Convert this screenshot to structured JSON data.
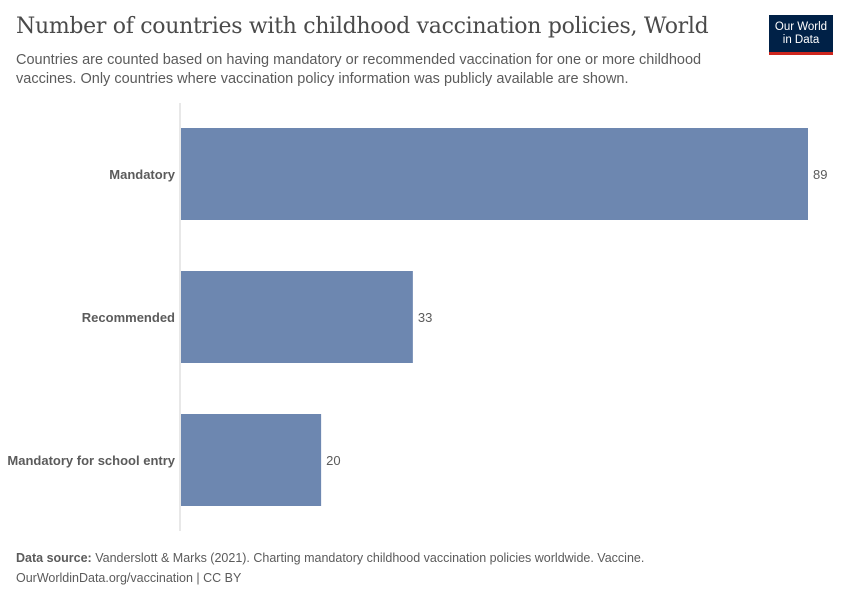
{
  "header": {
    "title": "Number of countries with childhood vaccination policies, World",
    "subtitle": "Countries are counted based on having mandatory or recommended vaccination for one or more childhood vaccines. Only countries where vaccination policy information was publicly available are shown.",
    "logo_line1": "Our World",
    "logo_line2": "in Data"
  },
  "chart_data": {
    "type": "bar",
    "orientation": "horizontal",
    "categories": [
      "Mandatory",
      "Recommended",
      "Mandatory for school entry"
    ],
    "values": [
      89,
      33,
      20
    ],
    "xlim": [
      0,
      89
    ],
    "grid": false,
    "bar_color": "#6d87b0",
    "data_labels": true
  },
  "footer": {
    "source_label": "Data source:",
    "source_text": " Vanderslott & Marks (2021). Charting mandatory childhood vaccination policies worldwide. Vaccine.",
    "url_license": "OurWorldinData.org/vaccination | CC BY"
  }
}
